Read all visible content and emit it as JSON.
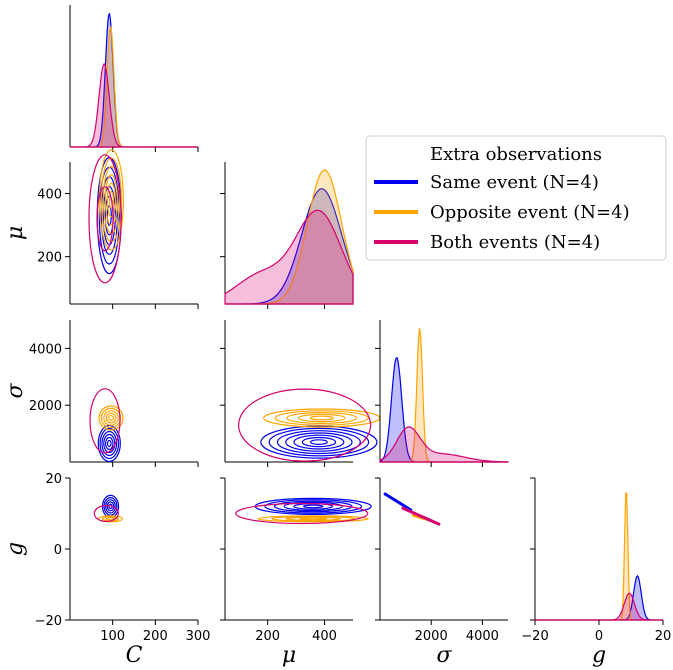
{
  "chart_data": {
    "type": "pairplot-kde",
    "variables": [
      {
        "key": "C",
        "label": "C",
        "range": [
          0,
          300
        ],
        "ticks": [
          100,
          200,
          300
        ]
      },
      {
        "key": "mu",
        "label": "μ",
        "range": [
          50,
          500
        ],
        "ticks": [
          200,
          400
        ]
      },
      {
        "key": "sigma",
        "label": "σ",
        "range": [
          0,
          5000
        ],
        "ticks": [
          2000,
          4000
        ]
      },
      {
        "key": "g",
        "label": "g",
        "range": [
          -20,
          20
        ],
        "ticks": [
          -20,
          0,
          20
        ]
      }
    ],
    "legend": {
      "title": "Extra observations",
      "placement": "upper-right",
      "entries": [
        {
          "name": "Same event (N=4)",
          "color": "#0000ee"
        },
        {
          "name": "Opposite event (N=4)",
          "color": "#ffa500"
        },
        {
          "name": "Both events (N=4)",
          "color": "#d6006f"
        }
      ]
    },
    "series": [
      {
        "name": "Same event (N=4)",
        "color": "#0000ee",
        "C": {
          "mean": 92,
          "sd": 9,
          "peak": 1.0
        },
        "mu": {
          "mean": 390,
          "sd": 70,
          "peak": 0.86
        },
        "sigma": {
          "mean": 650,
          "sd": 200,
          "peak": 0.78
        },
        "g": {
          "mean": 12,
          "sd": 1.2,
          "peak": 0.33
        },
        "mu_sigma_center": [
          380,
          700
        ],
        "C_g_center": [
          95,
          12
        ]
      },
      {
        "name": "Opposite event (N=4)",
        "color": "#ffa500",
        "C": {
          "mean": 95,
          "sd": 8,
          "peak": 0.9
        },
        "mu": {
          "mean": 400,
          "sd": 60,
          "peak": 1.0
        },
        "sigma": {
          "mean": 1550,
          "sd": 110,
          "peak": 1.0
        },
        "g": {
          "mean": 8.5,
          "sd": 0.5,
          "peak": 1.0
        },
        "mu_sigma_center": [
          390,
          1550
        ],
        "C_g_center": [
          95,
          8.5
        ]
      },
      {
        "name": "Both events (N=4)",
        "color": "#d6006f",
        "C": {
          "mean": 80,
          "sd": 12,
          "peak": 0.62
        },
        "mu": {
          "mean": 380,
          "sd": 110,
          "peak": 0.68
        },
        "sigma": {
          "mean": 1100,
          "sd": 450,
          "peak": 0.24
        },
        "g": {
          "mean": 9.5,
          "sd": 1.6,
          "peak": 0.2
        },
        "mu_sigma_center": [
          350,
          1300
        ],
        "C_g_center": [
          85,
          10
        ]
      }
    ]
  }
}
